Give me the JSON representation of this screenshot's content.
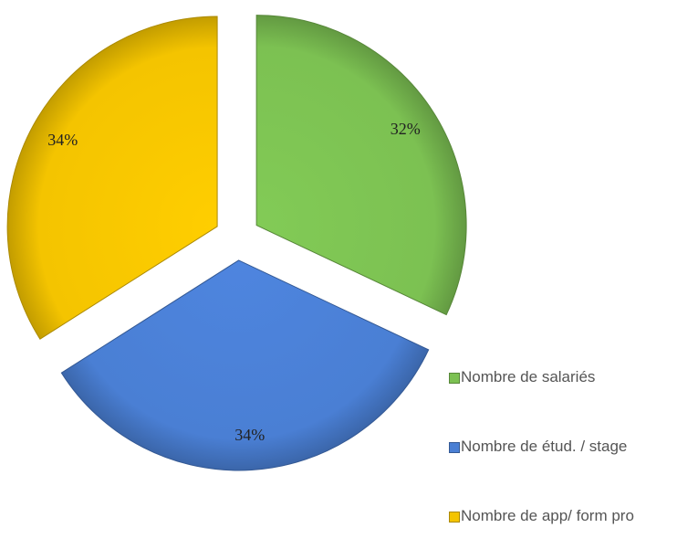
{
  "chart_data": {
    "type": "pie",
    "categories": [
      "Nombre de salariés",
      "Nombre de étud. / stage",
      "Nombre de app/ form pro"
    ],
    "values": [
      32,
      34,
      34
    ],
    "value_labels": [
      "32%",
      "34%",
      "34%"
    ],
    "colors": [
      "#7cc152",
      "#4a7fd4",
      "#f4c400"
    ],
    "legend": "right"
  }
}
